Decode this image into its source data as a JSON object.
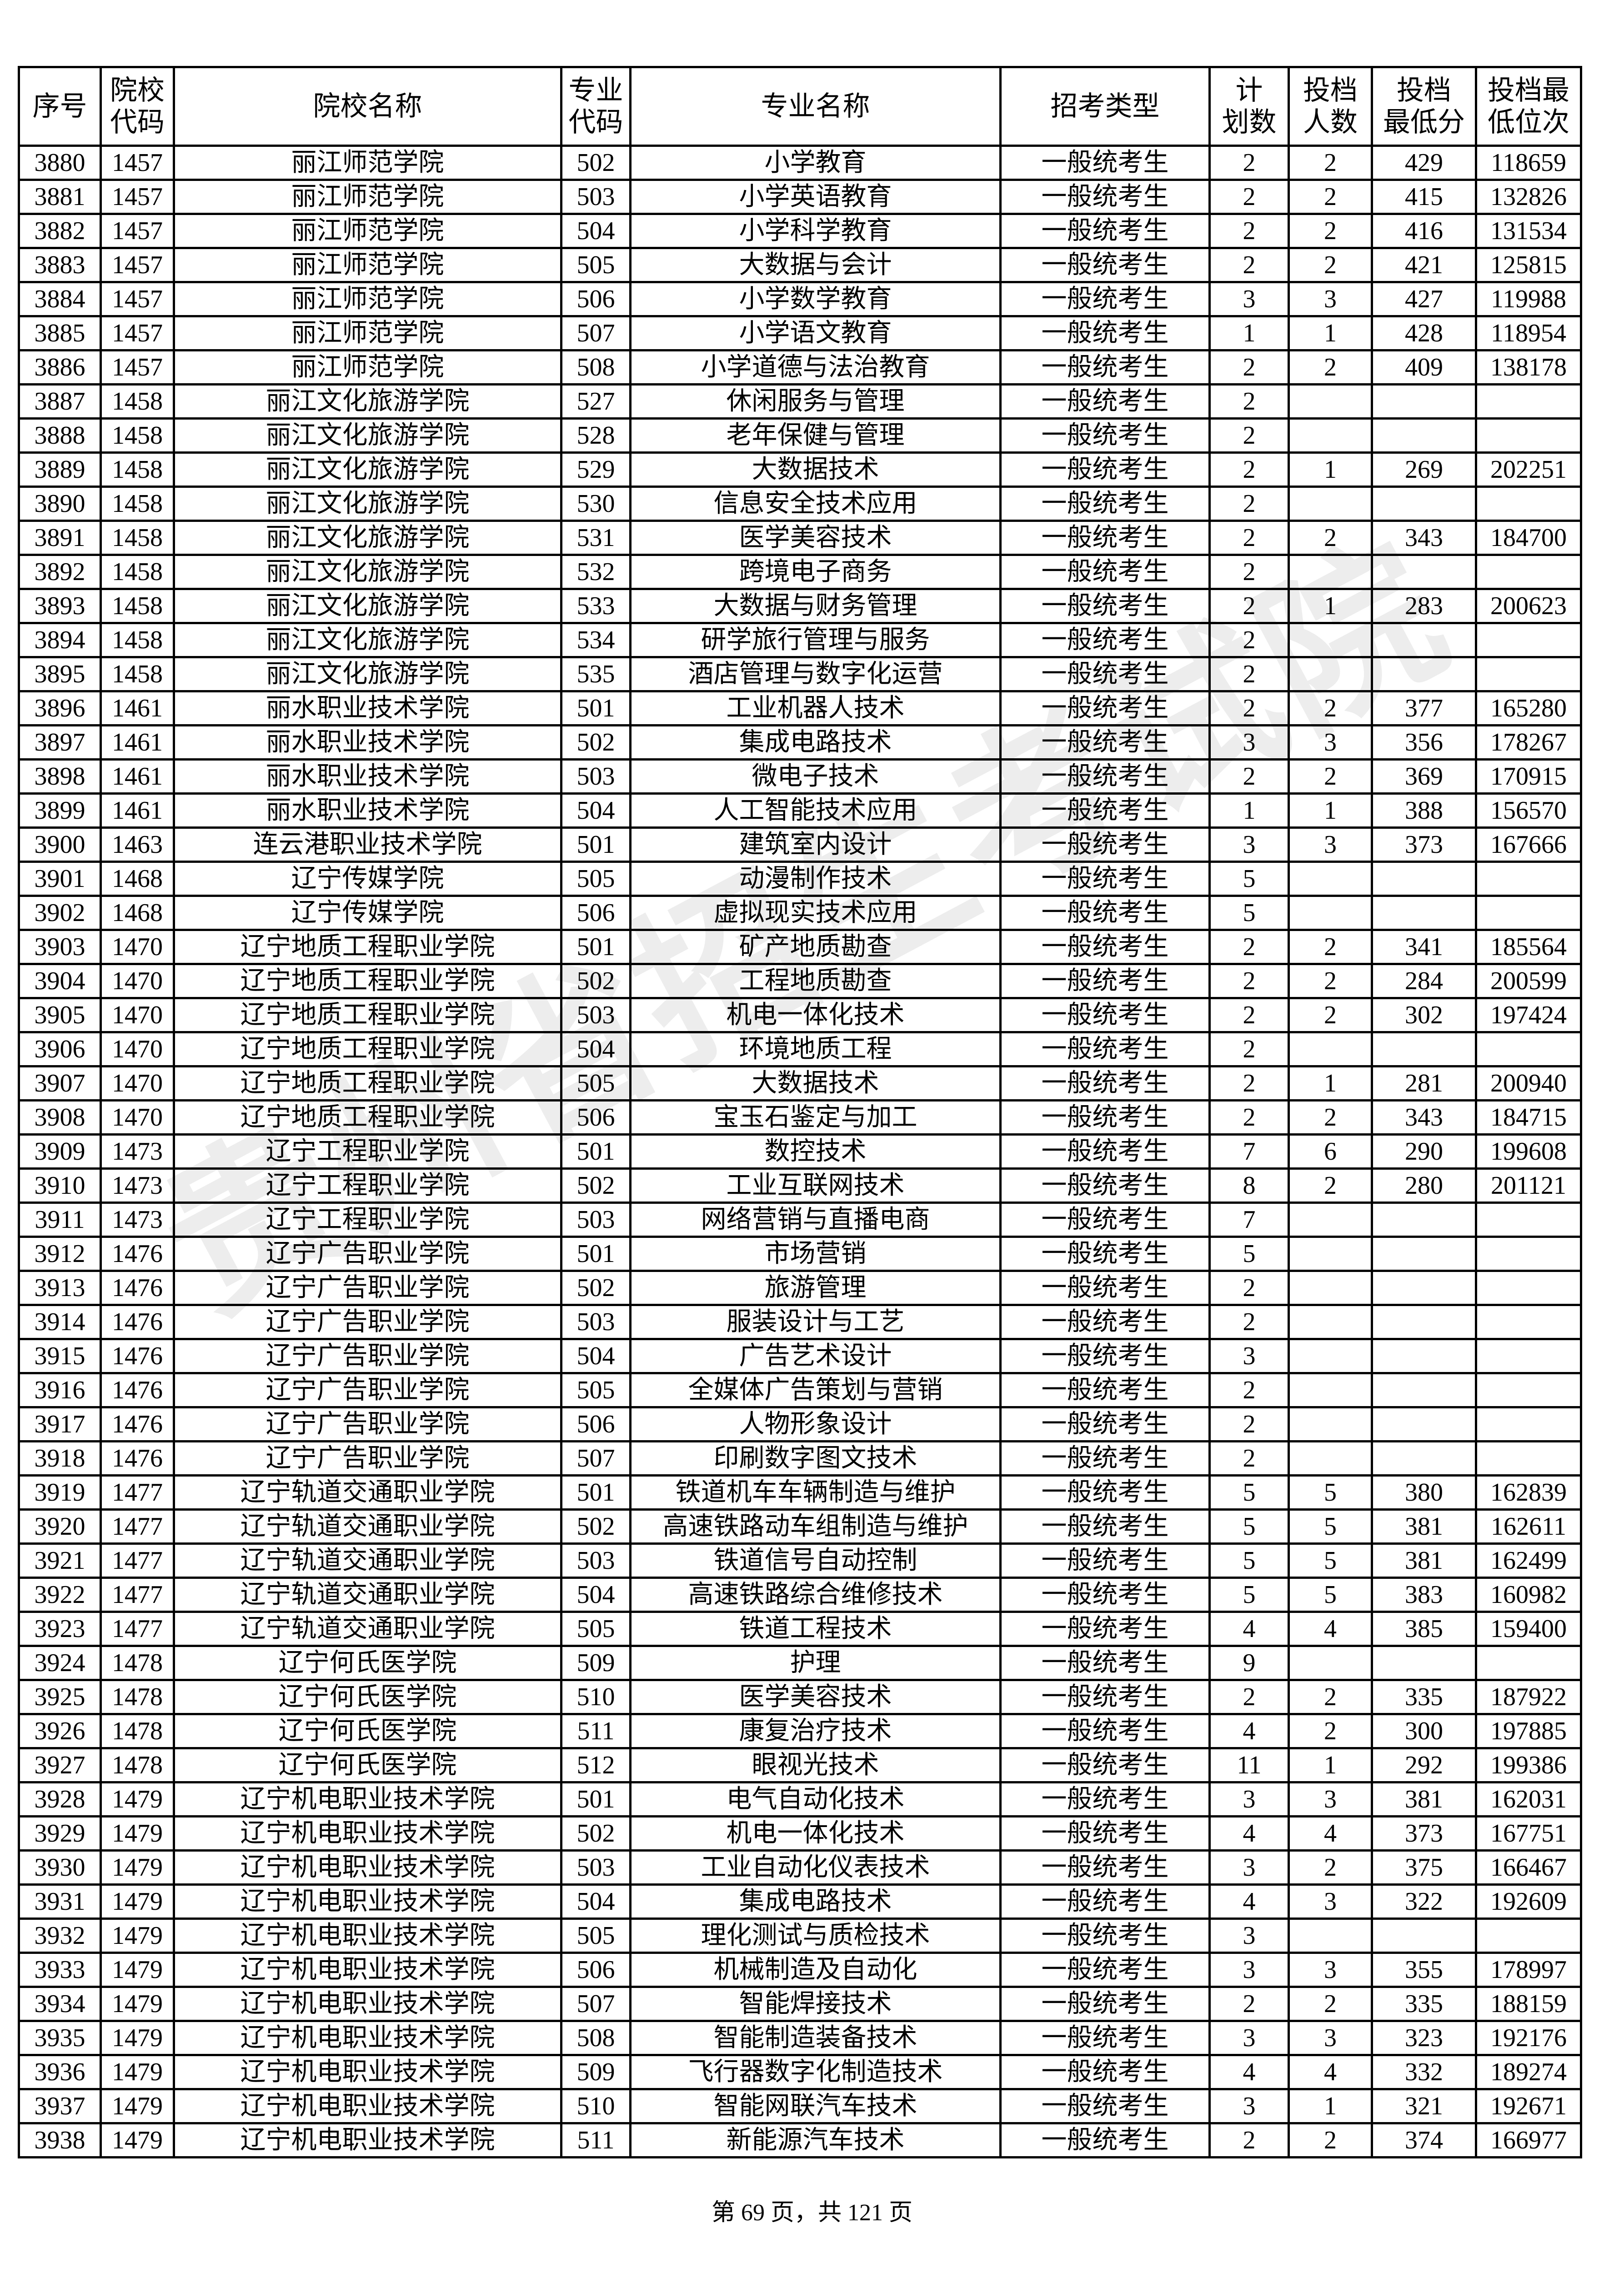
{
  "watermark": "贵州省招生考试院",
  "columns": [
    "序号",
    "院校\n代码",
    "院校名称",
    "专业\n代码",
    "专业名称",
    "招考类型",
    "计\n划数",
    "投档\n人数",
    "投档\n最低分",
    "投档最\n低位次"
  ],
  "rows": [
    [
      "3880",
      "1457",
      "丽江师范学院",
      "502",
      "小学教育",
      "一般统考生",
      "2",
      "2",
      "429",
      "118659"
    ],
    [
      "3881",
      "1457",
      "丽江师范学院",
      "503",
      "小学英语教育",
      "一般统考生",
      "2",
      "2",
      "415",
      "132826"
    ],
    [
      "3882",
      "1457",
      "丽江师范学院",
      "504",
      "小学科学教育",
      "一般统考生",
      "2",
      "2",
      "416",
      "131534"
    ],
    [
      "3883",
      "1457",
      "丽江师范学院",
      "505",
      "大数据与会计",
      "一般统考生",
      "2",
      "2",
      "421",
      "125815"
    ],
    [
      "3884",
      "1457",
      "丽江师范学院",
      "506",
      "小学数学教育",
      "一般统考生",
      "3",
      "3",
      "427",
      "119988"
    ],
    [
      "3885",
      "1457",
      "丽江师范学院",
      "507",
      "小学语文教育",
      "一般统考生",
      "1",
      "1",
      "428",
      "118954"
    ],
    [
      "3886",
      "1457",
      "丽江师范学院",
      "508",
      "小学道德与法治教育",
      "一般统考生",
      "2",
      "2",
      "409",
      "138178"
    ],
    [
      "3887",
      "1458",
      "丽江文化旅游学院",
      "527",
      "休闲服务与管理",
      "一般统考生",
      "2",
      "",
      "",
      ""
    ],
    [
      "3888",
      "1458",
      "丽江文化旅游学院",
      "528",
      "老年保健与管理",
      "一般统考生",
      "2",
      "",
      "",
      ""
    ],
    [
      "3889",
      "1458",
      "丽江文化旅游学院",
      "529",
      "大数据技术",
      "一般统考生",
      "2",
      "1",
      "269",
      "202251"
    ],
    [
      "3890",
      "1458",
      "丽江文化旅游学院",
      "530",
      "信息安全技术应用",
      "一般统考生",
      "2",
      "",
      "",
      ""
    ],
    [
      "3891",
      "1458",
      "丽江文化旅游学院",
      "531",
      "医学美容技术",
      "一般统考生",
      "2",
      "2",
      "343",
      "184700"
    ],
    [
      "3892",
      "1458",
      "丽江文化旅游学院",
      "532",
      "跨境电子商务",
      "一般统考生",
      "2",
      "",
      "",
      ""
    ],
    [
      "3893",
      "1458",
      "丽江文化旅游学院",
      "533",
      "大数据与财务管理",
      "一般统考生",
      "2",
      "1",
      "283",
      "200623"
    ],
    [
      "3894",
      "1458",
      "丽江文化旅游学院",
      "534",
      "研学旅行管理与服务",
      "一般统考生",
      "2",
      "",
      "",
      ""
    ],
    [
      "3895",
      "1458",
      "丽江文化旅游学院",
      "535",
      "酒店管理与数字化运营",
      "一般统考生",
      "2",
      "",
      "",
      ""
    ],
    [
      "3896",
      "1461",
      "丽水职业技术学院",
      "501",
      "工业机器人技术",
      "一般统考生",
      "2",
      "2",
      "377",
      "165280"
    ],
    [
      "3897",
      "1461",
      "丽水职业技术学院",
      "502",
      "集成电路技术",
      "一般统考生",
      "3",
      "3",
      "356",
      "178267"
    ],
    [
      "3898",
      "1461",
      "丽水职业技术学院",
      "503",
      "微电子技术",
      "一般统考生",
      "2",
      "2",
      "369",
      "170915"
    ],
    [
      "3899",
      "1461",
      "丽水职业技术学院",
      "504",
      "人工智能技术应用",
      "一般统考生",
      "1",
      "1",
      "388",
      "156570"
    ],
    [
      "3900",
      "1463",
      "连云港职业技术学院",
      "501",
      "建筑室内设计",
      "一般统考生",
      "3",
      "3",
      "373",
      "167666"
    ],
    [
      "3901",
      "1468",
      "辽宁传媒学院",
      "505",
      "动漫制作技术",
      "一般统考生",
      "5",
      "",
      "",
      ""
    ],
    [
      "3902",
      "1468",
      "辽宁传媒学院",
      "506",
      "虚拟现实技术应用",
      "一般统考生",
      "5",
      "",
      "",
      ""
    ],
    [
      "3903",
      "1470",
      "辽宁地质工程职业学院",
      "501",
      "矿产地质勘查",
      "一般统考生",
      "2",
      "2",
      "341",
      "185564"
    ],
    [
      "3904",
      "1470",
      "辽宁地质工程职业学院",
      "502",
      "工程地质勘查",
      "一般统考生",
      "2",
      "2",
      "284",
      "200599"
    ],
    [
      "3905",
      "1470",
      "辽宁地质工程职业学院",
      "503",
      "机电一体化技术",
      "一般统考生",
      "2",
      "2",
      "302",
      "197424"
    ],
    [
      "3906",
      "1470",
      "辽宁地质工程职业学院",
      "504",
      "环境地质工程",
      "一般统考生",
      "2",
      "",
      "",
      ""
    ],
    [
      "3907",
      "1470",
      "辽宁地质工程职业学院",
      "505",
      "大数据技术",
      "一般统考生",
      "2",
      "1",
      "281",
      "200940"
    ],
    [
      "3908",
      "1470",
      "辽宁地质工程职业学院",
      "506",
      "宝玉石鉴定与加工",
      "一般统考生",
      "2",
      "2",
      "343",
      "184715"
    ],
    [
      "3909",
      "1473",
      "辽宁工程职业学院",
      "501",
      "数控技术",
      "一般统考生",
      "7",
      "6",
      "290",
      "199608"
    ],
    [
      "3910",
      "1473",
      "辽宁工程职业学院",
      "502",
      "工业互联网技术",
      "一般统考生",
      "8",
      "2",
      "280",
      "201121"
    ],
    [
      "3911",
      "1473",
      "辽宁工程职业学院",
      "503",
      "网络营销与直播电商",
      "一般统考生",
      "7",
      "",
      "",
      ""
    ],
    [
      "3912",
      "1476",
      "辽宁广告职业学院",
      "501",
      "市场营销",
      "一般统考生",
      "5",
      "",
      "",
      ""
    ],
    [
      "3913",
      "1476",
      "辽宁广告职业学院",
      "502",
      "旅游管理",
      "一般统考生",
      "2",
      "",
      "",
      ""
    ],
    [
      "3914",
      "1476",
      "辽宁广告职业学院",
      "503",
      "服装设计与工艺",
      "一般统考生",
      "2",
      "",
      "",
      ""
    ],
    [
      "3915",
      "1476",
      "辽宁广告职业学院",
      "504",
      "广告艺术设计",
      "一般统考生",
      "3",
      "",
      "",
      ""
    ],
    [
      "3916",
      "1476",
      "辽宁广告职业学院",
      "505",
      "全媒体广告策划与营销",
      "一般统考生",
      "2",
      "",
      "",
      ""
    ],
    [
      "3917",
      "1476",
      "辽宁广告职业学院",
      "506",
      "人物形象设计",
      "一般统考生",
      "2",
      "",
      "",
      ""
    ],
    [
      "3918",
      "1476",
      "辽宁广告职业学院",
      "507",
      "印刷数字图文技术",
      "一般统考生",
      "2",
      "",
      "",
      ""
    ],
    [
      "3919",
      "1477",
      "辽宁轨道交通职业学院",
      "501",
      "铁道机车车辆制造与维护",
      "一般统考生",
      "5",
      "5",
      "380",
      "162839"
    ],
    [
      "3920",
      "1477",
      "辽宁轨道交通职业学院",
      "502",
      "高速铁路动车组制造与维护",
      "一般统考生",
      "5",
      "5",
      "381",
      "162611"
    ],
    [
      "3921",
      "1477",
      "辽宁轨道交通职业学院",
      "503",
      "铁道信号自动控制",
      "一般统考生",
      "5",
      "5",
      "381",
      "162499"
    ],
    [
      "3922",
      "1477",
      "辽宁轨道交通职业学院",
      "504",
      "高速铁路综合维修技术",
      "一般统考生",
      "5",
      "5",
      "383",
      "160982"
    ],
    [
      "3923",
      "1477",
      "辽宁轨道交通职业学院",
      "505",
      "铁道工程技术",
      "一般统考生",
      "4",
      "4",
      "385",
      "159400"
    ],
    [
      "3924",
      "1478",
      "辽宁何氏医学院",
      "509",
      "护理",
      "一般统考生",
      "9",
      "",
      "",
      ""
    ],
    [
      "3925",
      "1478",
      "辽宁何氏医学院",
      "510",
      "医学美容技术",
      "一般统考生",
      "2",
      "2",
      "335",
      "187922"
    ],
    [
      "3926",
      "1478",
      "辽宁何氏医学院",
      "511",
      "康复治疗技术",
      "一般统考生",
      "4",
      "2",
      "300",
      "197885"
    ],
    [
      "3927",
      "1478",
      "辽宁何氏医学院",
      "512",
      "眼视光技术",
      "一般统考生",
      "11",
      "1",
      "292",
      "199386"
    ],
    [
      "3928",
      "1479",
      "辽宁机电职业技术学院",
      "501",
      "电气自动化技术",
      "一般统考生",
      "3",
      "3",
      "381",
      "162031"
    ],
    [
      "3929",
      "1479",
      "辽宁机电职业技术学院",
      "502",
      "机电一体化技术",
      "一般统考生",
      "4",
      "4",
      "373",
      "167751"
    ],
    [
      "3930",
      "1479",
      "辽宁机电职业技术学院",
      "503",
      "工业自动化仪表技术",
      "一般统考生",
      "3",
      "2",
      "375",
      "166467"
    ],
    [
      "3931",
      "1479",
      "辽宁机电职业技术学院",
      "504",
      "集成电路技术",
      "一般统考生",
      "4",
      "3",
      "322",
      "192609"
    ],
    [
      "3932",
      "1479",
      "辽宁机电职业技术学院",
      "505",
      "理化测试与质检技术",
      "一般统考生",
      "3",
      "",
      "",
      ""
    ],
    [
      "3933",
      "1479",
      "辽宁机电职业技术学院",
      "506",
      "机械制造及自动化",
      "一般统考生",
      "3",
      "3",
      "355",
      "178997"
    ],
    [
      "3934",
      "1479",
      "辽宁机电职业技术学院",
      "507",
      "智能焊接技术",
      "一般统考生",
      "2",
      "2",
      "335",
      "188159"
    ],
    [
      "3935",
      "1479",
      "辽宁机电职业技术学院",
      "508",
      "智能制造装备技术",
      "一般统考生",
      "3",
      "3",
      "323",
      "192176"
    ],
    [
      "3936",
      "1479",
      "辽宁机电职业技术学院",
      "509",
      "飞行器数字化制造技术",
      "一般统考生",
      "4",
      "4",
      "332",
      "189274"
    ],
    [
      "3937",
      "1479",
      "辽宁机电职业技术学院",
      "510",
      "智能网联汽车技术",
      "一般统考生",
      "3",
      "1",
      "321",
      "192671"
    ],
    [
      "3938",
      "1479",
      "辽宁机电职业技术学院",
      "511",
      "新能源汽车技术",
      "一般统考生",
      "2",
      "2",
      "374",
      "166977"
    ]
  ],
  "footer": "第 69 页，共 121 页"
}
